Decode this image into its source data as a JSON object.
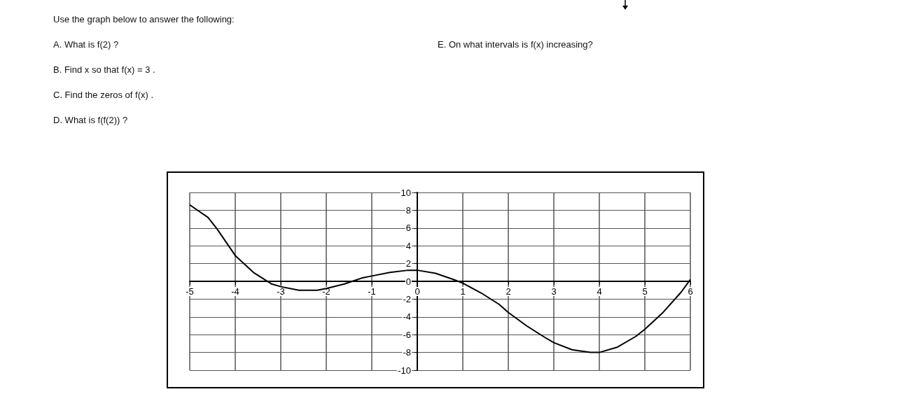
{
  "chart_data": {
    "type": "line",
    "title": "Use the graph below to answer the following:",
    "annotations": [
      "A. What is f(2) ?",
      "B. Find x so that f(x) = 3 .",
      "C. Find the zeros of f(x) .",
      "D. What is f(f(2)) ?",
      "E. On what intervals is f(x) increasing?"
    ],
    "series": [
      {
        "color": "#000000",
        "x": [
          -5,
          -4.6,
          -4.4,
          -4,
          -3.6,
          -3.2,
          -3,
          -2.6,
          -2.2,
          -2,
          -1.6,
          -1.2,
          -1,
          -0.6,
          -0.2,
          0,
          0.4,
          0.8,
          1,
          1.4,
          1.8,
          2,
          2.4,
          2.8,
          3,
          3.4,
          3.8,
          4,
          4.4,
          4.8,
          5,
          5.4,
          5.8,
          6
        ],
        "values": [
          8.6,
          7.2,
          5.9,
          2.9,
          1.0,
          -0.3,
          -0.6,
          -1.0,
          -1.0,
          -0.8,
          -0.3,
          0.4,
          0.6,
          1.0,
          1.25,
          1.25,
          0.9,
          0.2,
          -0.2,
          -1.3,
          -2.6,
          -3.5,
          -5.0,
          -6.3,
          -6.9,
          -7.7,
          -8.0,
          -8.0,
          -7.4,
          -6.2,
          -5.4,
          -3.5,
          -1.2,
          0.2
        ]
      }
    ],
    "xlim": [
      -5,
      6
    ],
    "xticks": [
      -5,
      -4,
      -3,
      -2,
      -1,
      0,
      1,
      2,
      3,
      4,
      5,
      6
    ],
    "ylim": [
      -10,
      10
    ],
    "yticks": [
      -10,
      -8,
      -6,
      -4,
      -2,
      0,
      2,
      4,
      6,
      8,
      10
    ],
    "grid": true,
    "marker": "none",
    "line_style": "solid"
  }
}
